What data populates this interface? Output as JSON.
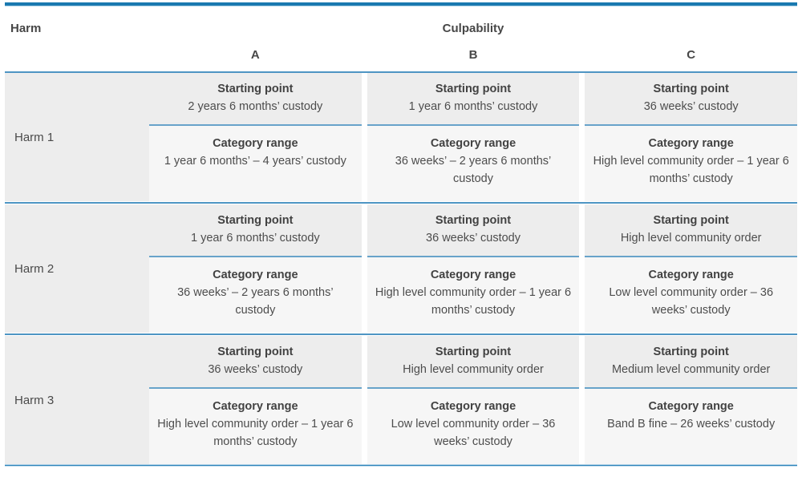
{
  "table": {
    "harm_header": "Harm",
    "culpability_header": "Culpability",
    "columns": [
      "A",
      "B",
      "C"
    ],
    "starting_point_label": "Starting point",
    "category_range_label": "Category range",
    "rows": [
      {
        "label": "Harm 1",
        "cells": [
          {
            "starting_point": "2 years 6 months’ custody",
            "category_range": "1 year 6 months’ – 4 years’ custody"
          },
          {
            "starting_point": "1 year 6 months’ custody",
            "category_range": "36 weeks’  – 2 years 6 months’ custody"
          },
          {
            "starting_point": "36 weeks’ custody",
            "category_range": "High level community order – 1 year 6 months’ custody"
          }
        ]
      },
      {
        "label": "Harm 2",
        "cells": [
          {
            "starting_point": "1 year 6 months’ custody",
            "category_range": "36 weeks’ – 2 years 6 months’ custody"
          },
          {
            "starting_point": "36 weeks’ custody",
            "category_range": "High level community order – 1 year 6 months’ custody"
          },
          {
            "starting_point": "High level community order",
            "category_range": "Low level community order – 36 weeks’ custody"
          }
        ]
      },
      {
        "label": "Harm 3",
        "cells": [
          {
            "starting_point": "36 weeks’ custody",
            "category_range": "High level community order – 1 year 6 months’ custody"
          },
          {
            "starting_point": "High level community order",
            "category_range": "Low level community order – 36 weeks’ custody"
          },
          {
            "starting_point": "Medium level community order",
            "category_range": "Band B fine – 26 weeks’ custody"
          }
        ]
      }
    ]
  },
  "colors": {
    "top_bar": "#1a79b0",
    "header_underline": "#4e95c3",
    "cell_divider": "#68a3ca",
    "band_separator": "#4e95c3",
    "bottom_bar": "#2b83b9",
    "starting_point_bg": "#ededed",
    "category_range_bg": "#f6f6f6",
    "text": "#4a4a4a"
  }
}
